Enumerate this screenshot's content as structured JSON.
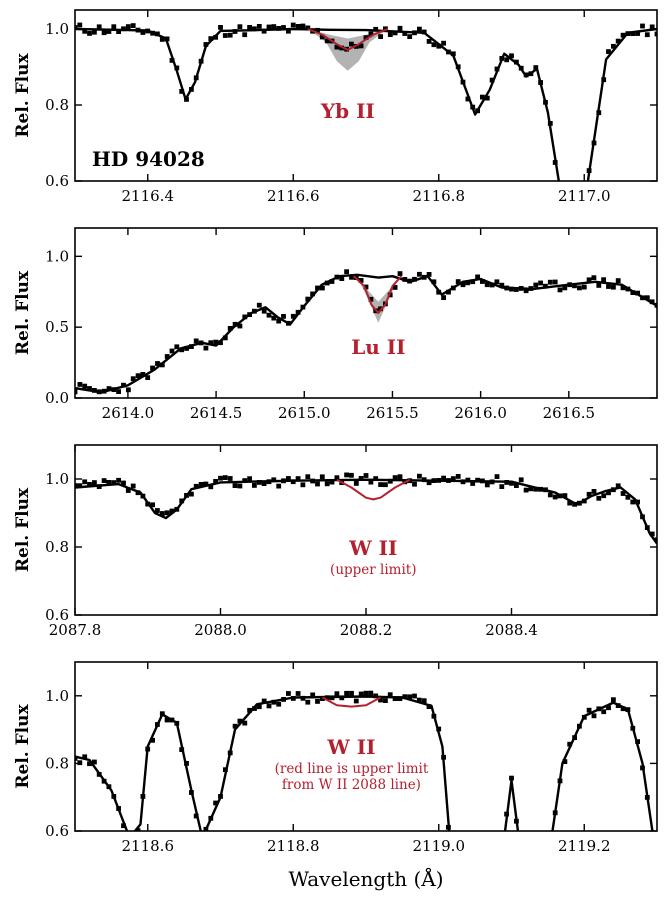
{
  "figure": {
    "xlabel": "Wavelength (Å)",
    "ylabel": "Rel. Flux",
    "colors": {
      "observed": "#000000",
      "model": "#000000",
      "element_fit": "#b5202e",
      "uncertainty_band": "#b3b3b3"
    }
  },
  "chart_data": [
    {
      "type": "scatter",
      "xlim": [
        2116.3,
        2117.1
      ],
      "ylim": [
        0.6,
        1.05
      ],
      "xticks": [
        2116.4,
        2116.6,
        2116.8,
        2117.0
      ],
      "xtick_labels": [
        "2116.4",
        "2116.6",
        "2116.8",
        "2117.0"
      ],
      "yticks": [
        0.6,
        0.8,
        1.0
      ],
      "ytick_labels": [
        "0.6",
        "0.8",
        "1.0"
      ],
      "ylabel": "Rel. Flux",
      "star_label": "HD 94028",
      "element_label": "Yb II",
      "element_note": "",
      "line_center": 2116.675,
      "observed_seed": 11,
      "model": [
        [
          2116.3,
          1.0
        ],
        [
          2116.4,
          0.996
        ],
        [
          2116.425,
          0.975
        ],
        [
          2116.44,
          0.89
        ],
        [
          2116.452,
          0.815
        ],
        [
          2116.465,
          0.86
        ],
        [
          2116.48,
          0.955
        ],
        [
          2116.5,
          0.995
        ],
        [
          2116.55,
          0.997
        ],
        [
          2116.6,
          1.0
        ],
        [
          2116.65,
          0.998
        ],
        [
          2116.7,
          0.997
        ],
        [
          2116.78,
          0.99
        ],
        [
          2116.82,
          0.93
        ],
        [
          2116.85,
          0.775
        ],
        [
          2116.87,
          0.84
        ],
        [
          2116.89,
          0.935
        ],
        [
          2116.91,
          0.905
        ],
        [
          2116.92,
          0.875
        ],
        [
          2116.935,
          0.895
        ],
        [
          2116.95,
          0.78
        ],
        [
          2116.965,
          0.6
        ],
        [
          2116.99,
          0.5
        ],
        [
          2117.005,
          0.6
        ],
        [
          2117.03,
          0.92
        ],
        [
          2117.06,
          0.99
        ],
        [
          2117.1,
          1.0
        ]
      ],
      "element_fit": [
        [
          2116.62,
          1.0
        ],
        [
          2116.64,
          0.985
        ],
        [
          2116.66,
          0.96
        ],
        [
          2116.675,
          0.945
        ],
        [
          2116.69,
          0.96
        ],
        [
          2116.71,
          0.985
        ],
        [
          2116.73,
          1.0
        ]
      ],
      "band_upper": [
        [
          2116.62,
          1.0
        ],
        [
          2116.65,
          0.985
        ],
        [
          2116.675,
          0.975
        ],
        [
          2116.7,
          0.985
        ],
        [
          2116.73,
          1.0
        ]
      ],
      "band_lower": [
        [
          2116.62,
          1.0
        ],
        [
          2116.645,
          0.965
        ],
        [
          2116.66,
          0.915
        ],
        [
          2116.675,
          0.89
        ],
        [
          2116.69,
          0.915
        ],
        [
          2116.705,
          0.965
        ],
        [
          2116.73,
          1.0
        ]
      ]
    },
    {
      "type": "scatter",
      "xlim": [
        2613.7,
        2617.0
      ],
      "ylim": [
        0.0,
        1.2
      ],
      "xticks": [
        2614.0,
        2614.5,
        2615.0,
        2615.5,
        2616.0,
        2616.5
      ],
      "xtick_labels": [
        "2614.0",
        "2614.5",
        "2615.0",
        "2615.5",
        "2616.0",
        "2616.5"
      ],
      "yticks": [
        0.0,
        0.5,
        1.0
      ],
      "ytick_labels": [
        "0.0",
        "0.5",
        "1.0"
      ],
      "ylabel": "Rel. Flux",
      "star_label": "",
      "element_label": "Lu II",
      "element_note": "",
      "line_center": 2615.42,
      "observed_seed": 23,
      "model": [
        [
          2613.7,
          0.07
        ],
        [
          2613.85,
          0.04
        ],
        [
          2614.0,
          0.09
        ],
        [
          2614.15,
          0.2
        ],
        [
          2614.3,
          0.35
        ],
        [
          2614.42,
          0.39
        ],
        [
          2614.5,
          0.37
        ],
        [
          2614.6,
          0.5
        ],
        [
          2614.7,
          0.6
        ],
        [
          2614.78,
          0.64
        ],
        [
          2614.85,
          0.57
        ],
        [
          2614.92,
          0.52
        ],
        [
          2615.0,
          0.65
        ],
        [
          2615.1,
          0.8
        ],
        [
          2615.2,
          0.86
        ],
        [
          2615.3,
          0.87
        ],
        [
          2615.42,
          0.85
        ],
        [
          2615.5,
          0.86
        ],
        [
          2615.6,
          0.82
        ],
        [
          2615.7,
          0.86
        ],
        [
          2615.78,
          0.73
        ],
        [
          2615.9,
          0.82
        ],
        [
          2616.0,
          0.84
        ],
        [
          2616.12,
          0.78
        ],
        [
          2616.3,
          0.77
        ],
        [
          2616.5,
          0.8
        ],
        [
          2616.65,
          0.82
        ],
        [
          2616.8,
          0.8
        ],
        [
          2617.0,
          0.65
        ]
      ],
      "element_fit": [
        [
          2615.28,
          0.86
        ],
        [
          2615.34,
          0.79
        ],
        [
          2615.38,
          0.66
        ],
        [
          2615.42,
          0.6
        ],
        [
          2615.46,
          0.66
        ],
        [
          2615.5,
          0.79
        ],
        [
          2615.55,
          0.86
        ]
      ],
      "band_upper": [
        [
          2615.3,
          0.86
        ],
        [
          2615.36,
          0.76
        ],
        [
          2615.42,
          0.68
        ],
        [
          2615.48,
          0.76
        ],
        [
          2615.54,
          0.86
        ]
      ],
      "band_lower": [
        [
          2615.3,
          0.86
        ],
        [
          2615.36,
          0.7
        ],
        [
          2615.42,
          0.53
        ],
        [
          2615.48,
          0.7
        ],
        [
          2615.54,
          0.86
        ]
      ]
    },
    {
      "type": "scatter",
      "xlim": [
        2087.8,
        2088.6
      ],
      "ylim": [
        0.6,
        1.1
      ],
      "xticks": [
        2087.8,
        2088.0,
        2088.2,
        2088.4
      ],
      "xtick_labels": [
        "2087.8",
        "2088.0",
        "2088.2",
        "2088.4"
      ],
      "yticks": [
        0.6,
        0.8,
        1.0
      ],
      "ytick_labels": [
        "0.6",
        "0.8",
        "1.0"
      ],
      "ylabel": "Rel. Flux",
      "star_label": "",
      "element_label": "W II",
      "element_note": "(upper limit)",
      "line_center": 2088.21,
      "observed_seed": 37,
      "model": [
        [
          2087.8,
          0.975
        ],
        [
          2087.86,
          0.985
        ],
        [
          2087.89,
          0.96
        ],
        [
          2087.91,
          0.9
        ],
        [
          2087.925,
          0.885
        ],
        [
          2087.94,
          0.91
        ],
        [
          2087.96,
          0.97
        ],
        [
          2088.0,
          0.99
        ],
        [
          2088.1,
          0.995
        ],
        [
          2088.2,
          0.998
        ],
        [
          2088.3,
          0.995
        ],
        [
          2088.4,
          0.992
        ],
        [
          2088.46,
          0.96
        ],
        [
          2088.49,
          0.925
        ],
        [
          2088.51,
          0.95
        ],
        [
          2088.53,
          0.965
        ],
        [
          2088.55,
          0.975
        ],
        [
          2088.57,
          0.94
        ],
        [
          2088.59,
          0.84
        ],
        [
          2088.6,
          0.81
        ]
      ],
      "element_fit": [
        [
          2088.16,
          0.998
        ],
        [
          2088.18,
          0.975
        ],
        [
          2088.2,
          0.945
        ],
        [
          2088.21,
          0.94
        ],
        [
          2088.22,
          0.945
        ],
        [
          2088.24,
          0.975
        ],
        [
          2088.26,
          0.998
        ]
      ],
      "band_upper": [],
      "band_lower": []
    },
    {
      "type": "scatter",
      "xlim": [
        2118.5,
        2119.3
      ],
      "ylim": [
        0.6,
        1.1
      ],
      "xticks": [
        2118.6,
        2118.8,
        2119.0,
        2119.2
      ],
      "xtick_labels": [
        "2118.6",
        "2118.8",
        "2119.0",
        "2119.2"
      ],
      "yticks": [
        0.6,
        0.8,
        1.0
      ],
      "ytick_labels": [
        "0.6",
        "0.8",
        "1.0"
      ],
      "ylabel": "Rel. Flux",
      "star_label": "",
      "element_label": "W II",
      "element_note": "(red line is upper limit\nfrom W II 2088 line)",
      "line_center": 2118.88,
      "observed_seed": 53,
      "model": [
        [
          2118.5,
          0.82
        ],
        [
          2118.52,
          0.81
        ],
        [
          2118.55,
          0.72
        ],
        [
          2118.575,
          0.58
        ],
        [
          2118.59,
          0.62
        ],
        [
          2118.6,
          0.85
        ],
        [
          2118.62,
          0.945
        ],
        [
          2118.64,
          0.92
        ],
        [
          2118.66,
          0.72
        ],
        [
          2118.675,
          0.58
        ],
        [
          2118.7,
          0.7
        ],
        [
          2118.72,
          0.9
        ],
        [
          2118.75,
          0.975
        ],
        [
          2118.8,
          0.995
        ],
        [
          2118.9,
          0.998
        ],
        [
          2118.95,
          0.995
        ],
        [
          2118.99,
          0.97
        ],
        [
          2119.005,
          0.85
        ],
        [
          2119.015,
          0.58
        ],
        [
          2119.09,
          0.58
        ],
        [
          2119.1,
          0.75
        ],
        [
          2119.11,
          0.58
        ],
        [
          2119.155,
          0.58
        ],
        [
          2119.17,
          0.8
        ],
        [
          2119.2,
          0.94
        ],
        [
          2119.24,
          0.98
        ],
        [
          2119.26,
          0.96
        ],
        [
          2119.28,
          0.8
        ],
        [
          2119.295,
          0.58
        ]
      ],
      "element_fit": [
        [
          2118.84,
          0.995
        ],
        [
          2118.86,
          0.972
        ],
        [
          2118.88,
          0.968
        ],
        [
          2118.9,
          0.972
        ],
        [
          2118.92,
          0.995
        ]
      ],
      "band_upper": [],
      "band_lower": []
    }
  ]
}
